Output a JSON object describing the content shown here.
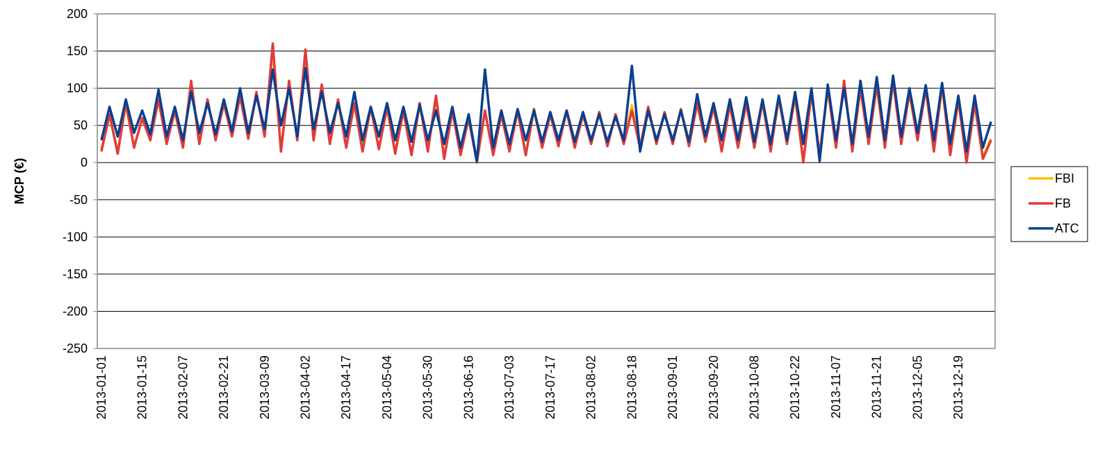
{
  "chart_data": {
    "type": "line",
    "y_label": "MCP (€)",
    "categories": [
      "2013-01-01",
      null,
      null,
      null,
      null,
      "2013-01-15",
      null,
      null,
      null,
      null,
      "2013-02-07",
      null,
      null,
      null,
      null,
      "2013-02-21",
      null,
      null,
      null,
      null,
      "2013-03-09",
      null,
      null,
      null,
      null,
      "2013-04-02",
      null,
      null,
      null,
      null,
      "2013-04-17",
      null,
      null,
      null,
      null,
      "2013-05-04",
      null,
      null,
      null,
      null,
      "2013-05-30",
      null,
      null,
      null,
      null,
      "2013-06-16",
      null,
      null,
      null,
      null,
      "2013-07-03",
      null,
      null,
      null,
      null,
      "2013-07-17",
      null,
      null,
      null,
      null,
      "2013-08-02",
      null,
      null,
      null,
      null,
      "2013-08-18",
      null,
      null,
      null,
      null,
      "2013-09-01",
      null,
      null,
      null,
      null,
      "2013-09-20",
      null,
      null,
      null,
      null,
      "2013-10-08",
      null,
      null,
      null,
      null,
      "2013-10-22",
      null,
      null,
      null,
      null,
      "2013-11-07",
      null,
      null,
      null,
      null,
      "2013-11-21",
      null,
      null,
      null,
      null,
      "2013-12-05",
      null,
      null,
      null,
      null,
      "2013-12-19",
      null,
      null,
      null,
      null
    ],
    "series": [
      {
        "name": "FBI",
        "color": "#ffc000",
        "values": [
          18,
          63,
          15,
          78,
          22,
          58,
          32,
          83,
          28,
          68,
          22,
          105,
          27,
          83,
          32,
          78,
          37,
          88,
          34,
          92,
          37,
          150,
          18,
          108,
          32,
          145,
          32,
          102,
          28,
          82,
          22,
          78,
          18,
          73,
          20,
          73,
          15,
          68,
          12,
          78,
          20,
          85,
          8,
          68,
          14,
          58,
          3,
          68,
          12,
          63,
          18,
          68,
          12,
          70,
          22,
          63,
          24,
          68,
          22,
          63,
          27,
          66,
          24,
          63,
          27,
          77,
          22,
          73,
          27,
          66,
          27,
          70,
          24,
          78,
          30,
          73,
          18,
          76,
          25,
          78,
          25,
          80,
          18,
          85,
          27,
          88,
          3,
          92,
          12,
          98,
          22,
          105,
          18,
          98,
          27,
          102,
          22,
          108,
          27,
          92,
          32,
          98,
          18,
          102,
          12,
          82,
          3,
          78,
          8,
          32
        ]
      },
      {
        "name": "FB",
        "color": "#e03c3c",
        "values": [
          15,
          65,
          12,
          80,
          20,
          60,
          30,
          85,
          25,
          70,
          20,
          110,
          25,
          85,
          30,
          80,
          35,
          90,
          32,
          95,
          35,
          160,
          15,
          110,
          30,
          152,
          30,
          105,
          25,
          85,
          20,
          80,
          15,
          75,
          18,
          75,
          12,
          70,
          10,
          80,
          15,
          90,
          5,
          70,
          10,
          60,
          0,
          70,
          10,
          65,
          15,
          70,
          10,
          72,
          20,
          65,
          22,
          70,
          20,
          65,
          25,
          68,
          22,
          65,
          25,
          70,
          20,
          75,
          25,
          68,
          25,
          72,
          22,
          80,
          28,
          75,
          15,
          78,
          20,
          80,
          20,
          82,
          15,
          88,
          25,
          90,
          0,
          95,
          10,
          100,
          20,
          110,
          15,
          100,
          25,
          105,
          20,
          110,
          25,
          95,
          30,
          100,
          15,
          105,
          10,
          85,
          0,
          80,
          5,
          30
        ]
      },
      {
        "name": "ATC",
        "color": "#0a3f8f",
        "values": [
          30,
          75,
          35,
          85,
          40,
          70,
          38,
          98,
          35,
          75,
          30,
          95,
          40,
          80,
          38,
          85,
          42,
          100,
          40,
          90,
          45,
          125,
          50,
          100,
          35,
          127,
          45,
          95,
          40,
          80,
          35,
          95,
          30,
          75,
          35,
          80,
          30,
          75,
          28,
          78,
          30,
          70,
          25,
          75,
          20,
          65,
          2,
          125,
          20,
          70,
          25,
          72,
          30,
          70,
          28,
          68,
          30,
          70,
          28,
          68,
          30,
          65,
          28,
          62,
          30,
          130,
          15,
          70,
          30,
          65,
          30,
          70,
          28,
          92,
          35,
          80,
          30,
          85,
          30,
          88,
          28,
          85,
          25,
          90,
          30,
          95,
          25,
          100,
          2,
          105,
          30,
          100,
          25,
          110,
          35,
          115,
          30,
          117,
          35,
          100,
          40,
          104,
          30,
          107,
          25,
          90,
          15,
          90,
          20,
          55
        ]
      }
    ],
    "ylim": [
      -250,
      200
    ],
    "yticks": [
      -250,
      -200,
      -150,
      -100,
      -50,
      0,
      50,
      100,
      150,
      200
    ],
    "grid": true
  }
}
